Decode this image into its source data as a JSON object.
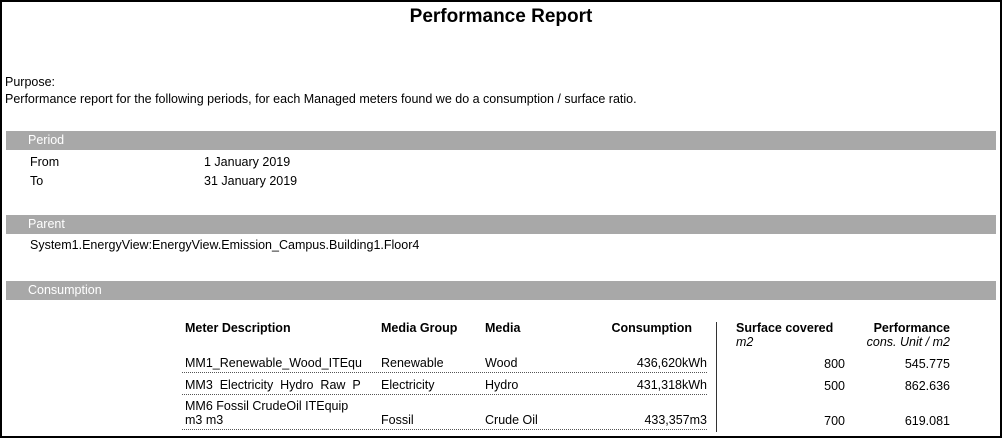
{
  "report": {
    "title": "Performance Report",
    "purpose_label": "Purpose:",
    "purpose_text": "Performance report for the following periods, for each Managed meters found we do a consumption / surface ratio.",
    "colors": {
      "section_bar": "#a8a8a8",
      "section_bar_text": "#ffffff",
      "page_border": "#000000"
    },
    "sections": {
      "period": {
        "header": "Period",
        "from_label": "From",
        "from_value": "1 January 2019",
        "to_label": "To",
        "to_value": "31 January 2019"
      },
      "parent": {
        "header": "Parent",
        "path": "System1.EnergyView:EnergyView.Emission_Campus.Building1.Floor4"
      },
      "consumption": {
        "header": "Consumption",
        "table": {
          "columns": {
            "meter": "Meter Description",
            "media_group": "Media Group",
            "media": "Media",
            "consumption": "Consumption",
            "surface": "Surface covered",
            "surface_unit": "m2",
            "performance": "Performance",
            "performance_unit": "cons. Unit / m2"
          },
          "rows": [
            {
              "meter": "MM1_Renewable_Wood_ITEqu",
              "media_group": "Renewable",
              "media": "Wood",
              "consumption": "436,620kWh",
              "surface": "800",
              "performance": "545.775"
            },
            {
              "meter": "MM3  Electricity  Hydro  Raw  P",
              "media_group": "Electricity",
              "media": "Hydro",
              "consumption": "431,318kWh",
              "surface": "500",
              "performance": "862.636"
            },
            {
              "meter": "MM6 Fossil CrudeOil ITEquip\nm3 m3",
              "media_group": "Fossil",
              "media": "Crude Oil",
              "consumption": "433,357m3",
              "surface": "700",
              "performance": "619.081"
            }
          ]
        }
      }
    }
  }
}
